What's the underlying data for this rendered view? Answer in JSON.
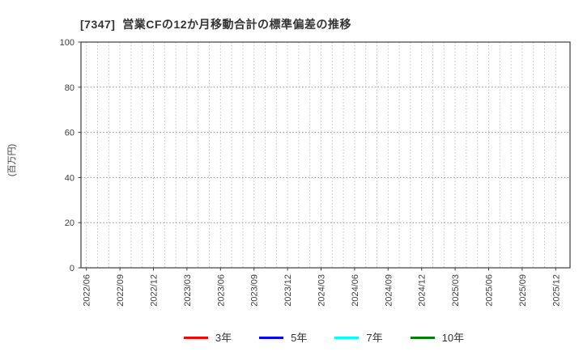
{
  "chart_data": {
    "type": "line",
    "title": "[7347]  営業CFの12か月移動合計の標準偏差の推移",
    "xlabel": "",
    "ylabel": "(百万円)",
    "ylim": [
      0,
      100
    ],
    "yticks": [
      0,
      20,
      40,
      60,
      80,
      100
    ],
    "x_tick_labels": [
      "2022/06",
      "2022/09",
      "2022/12",
      "2023/03",
      "2023/06",
      "2023/09",
      "2023/12",
      "2024/03",
      "2024/06",
      "2024/09",
      "2024/12",
      "2025/03",
      "2025/06",
      "2025/09",
      "2025/12"
    ],
    "x_months_total": 43,
    "x_label_every_n_months": 3,
    "grid": true,
    "grid_style": "dotted",
    "legend_position": "bottom",
    "plot_area_empty": true,
    "series": [
      {
        "name": "3年",
        "color": "#ff0000",
        "x": [],
        "values": []
      },
      {
        "name": "5年",
        "color": "#0000ff",
        "x": [],
        "values": []
      },
      {
        "name": "7年",
        "color": "#00ffff",
        "x": [],
        "values": []
      },
      {
        "name": "10年",
        "color": "#008000",
        "x": [],
        "values": []
      }
    ]
  },
  "colors": {
    "background": "#ffffff",
    "title_text": "#333333",
    "tick_text": "#3d3d3d",
    "plot_border": "#3c3c3c",
    "grid_horizontal": "#8f8f8f",
    "grid_vertical": "#c3c3c3"
  }
}
